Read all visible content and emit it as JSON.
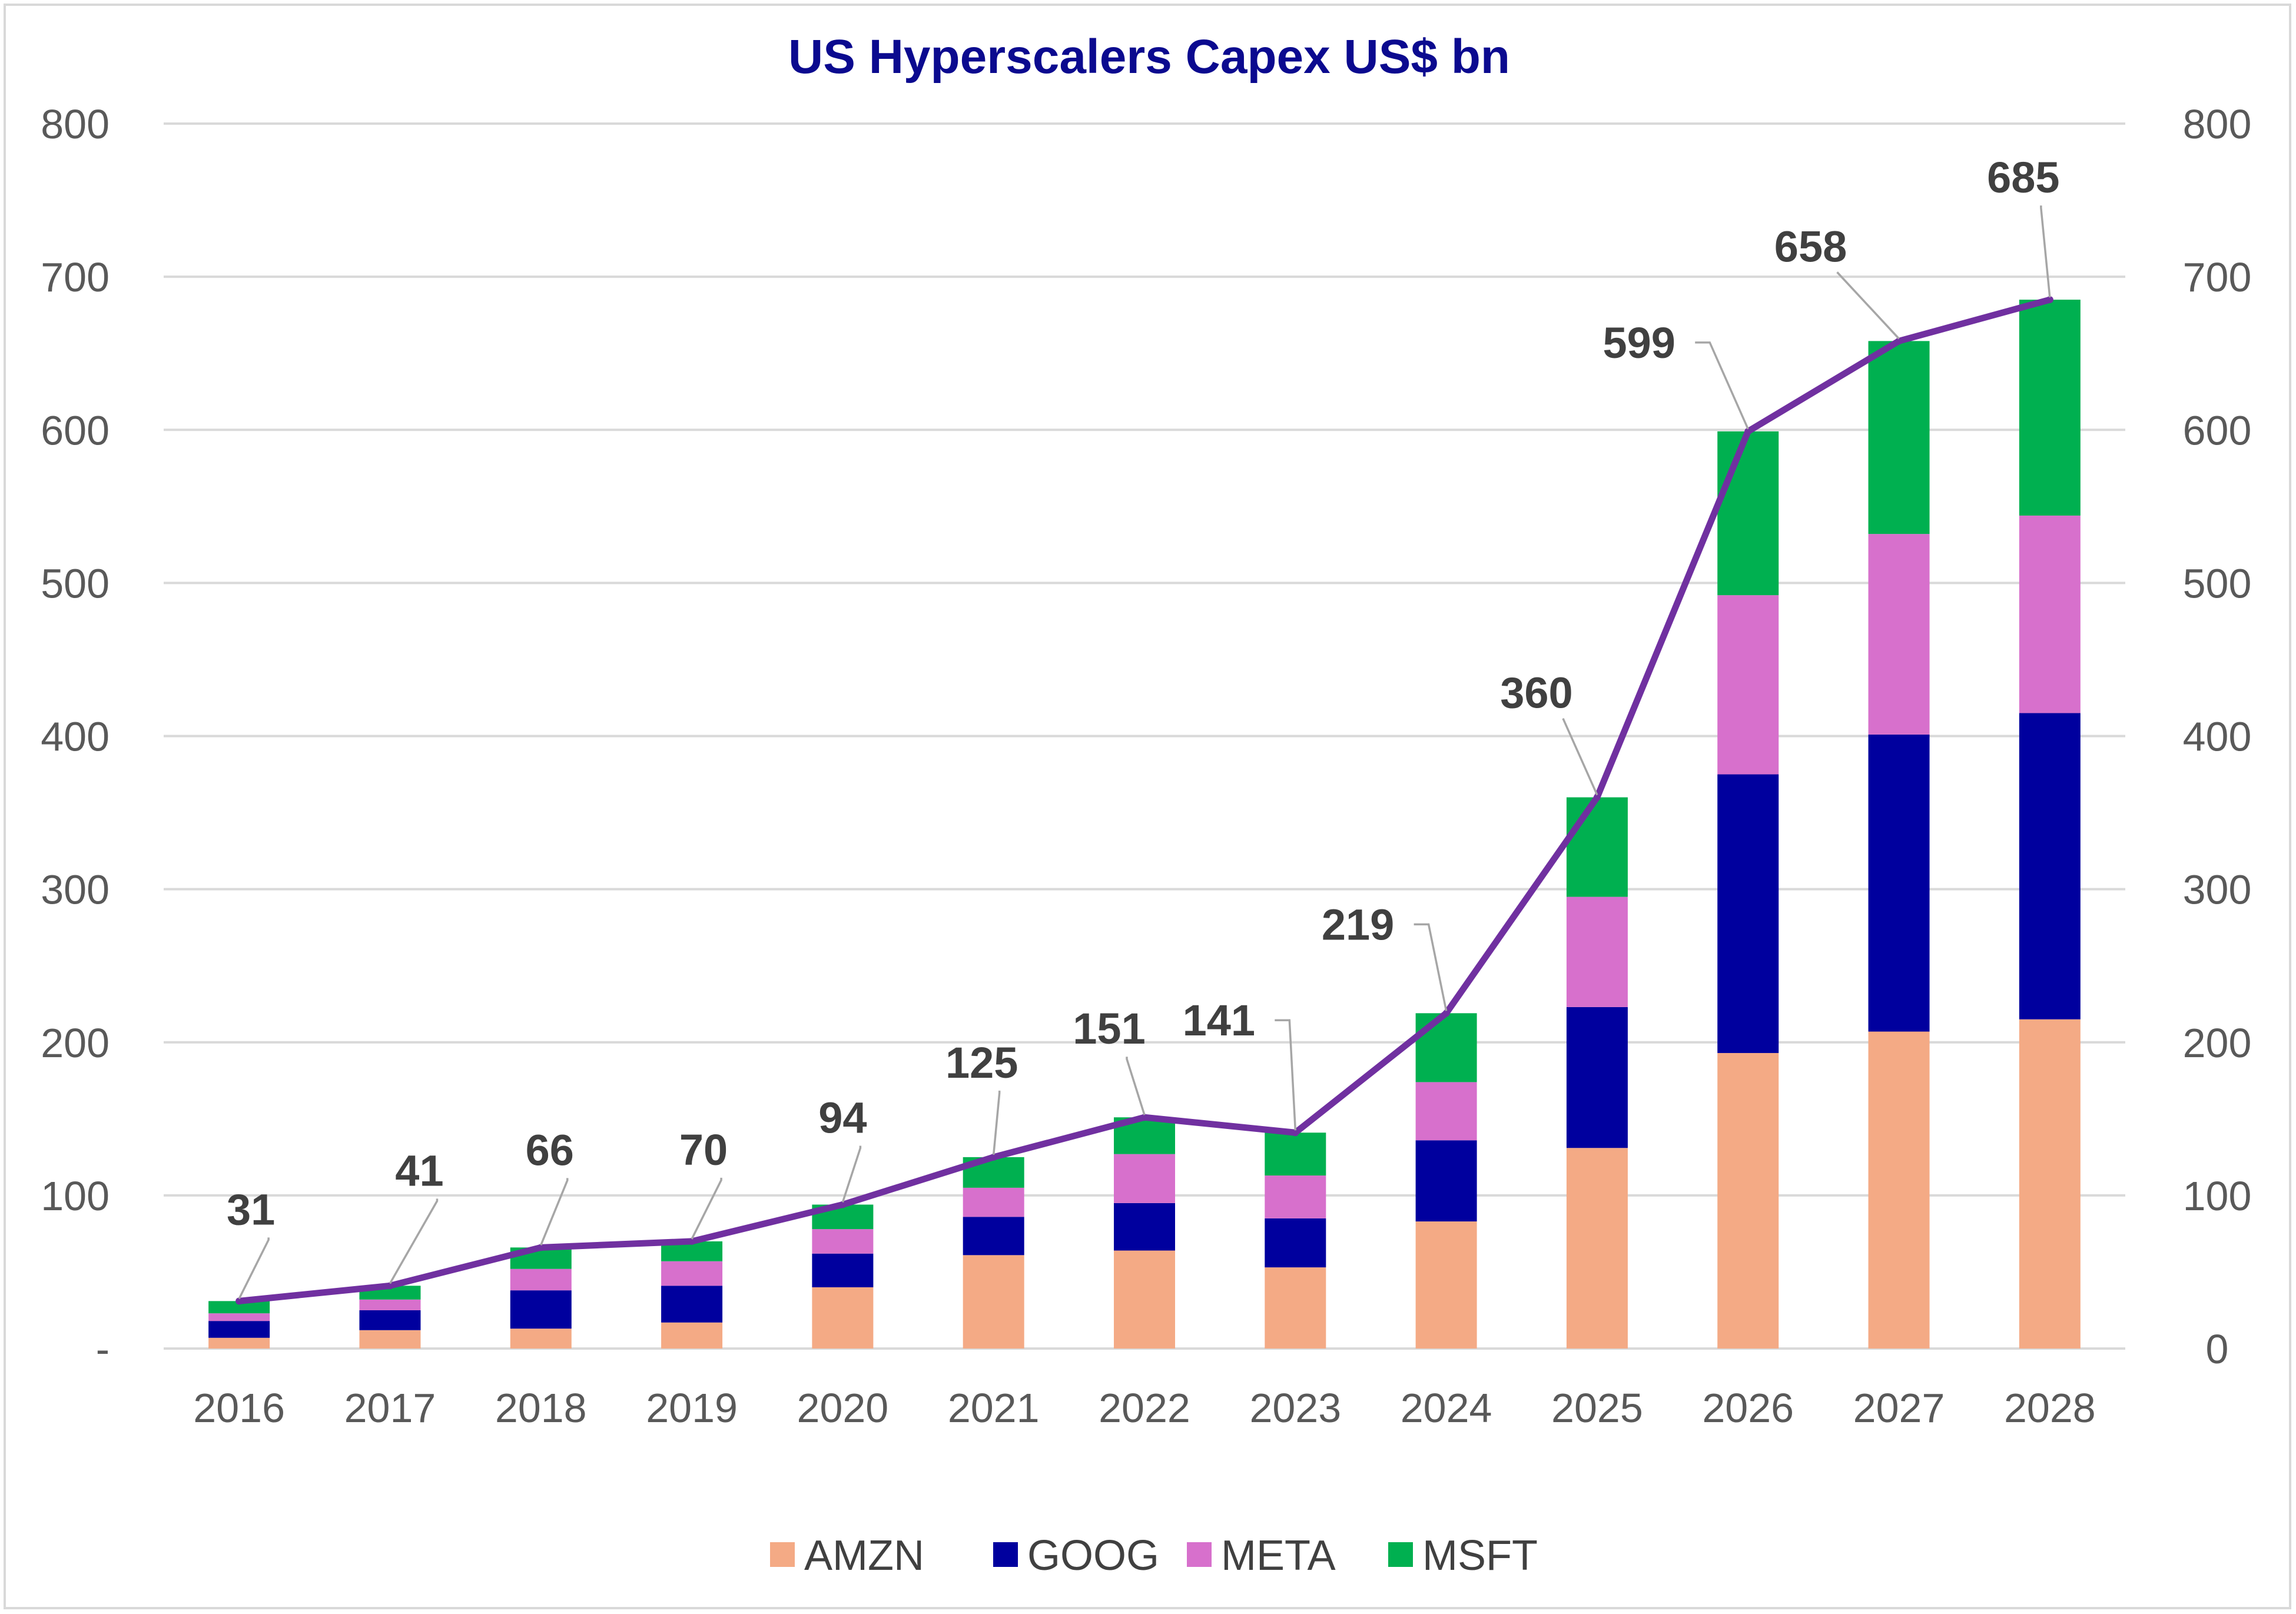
{
  "chart_data": {
    "type": "bar",
    "stacked": true,
    "title": "US Hyperscalers Capex US$ bn",
    "categories": [
      "2016",
      "2017",
      "2018",
      "2019",
      "2020",
      "2021",
      "2022",
      "2023",
      "2024",
      "2025",
      "2026",
      "2027",
      "2028"
    ],
    "series": [
      {
        "name": "AMZN",
        "color": "#f4aa85",
        "values": [
          7,
          12,
          13,
          17,
          40,
          61,
          64,
          53,
          83,
          131,
          193,
          207,
          215
        ]
      },
      {
        "name": "GOOG",
        "color": "#00009e",
        "values": [
          11,
          13,
          25,
          24,
          22,
          25,
          31,
          32,
          53,
          92,
          182,
          194,
          200
        ]
      },
      {
        "name": "META",
        "color": "#d770cc",
        "values": [
          5,
          7,
          14,
          16,
          16,
          19,
          32,
          28,
          38,
          72,
          117,
          131,
          129
        ]
      },
      {
        "name": "MSFT",
        "color": "#00b050",
        "values": [
          8,
          9,
          14,
          13,
          16,
          20,
          24,
          28,
          45,
          65,
          107,
          126,
          141
        ]
      }
    ],
    "total_line": {
      "name": "Total",
      "color": "#7030a0",
      "values": [
        31,
        41,
        66,
        70,
        94,
        125,
        151,
        141,
        219,
        360,
        599,
        658,
        685
      ]
    },
    "data_labels": [
      "31",
      "41",
      "66",
      "70",
      "94",
      "125",
      "151",
      "141",
      "219",
      "360",
      "599",
      "658",
      "685"
    ],
    "ylim": [
      0,
      800
    ],
    "y_ticks_left": [
      "-",
      "100",
      "200",
      "300",
      "400",
      "500",
      "600",
      "700",
      "800"
    ],
    "y_ticks_right": [
      "0",
      "100",
      "200",
      "300",
      "400",
      "500",
      "600",
      "700",
      "800"
    ],
    "grid": true,
    "legend_position": "bottom-center",
    "xlabel": "",
    "ylabel": ""
  }
}
